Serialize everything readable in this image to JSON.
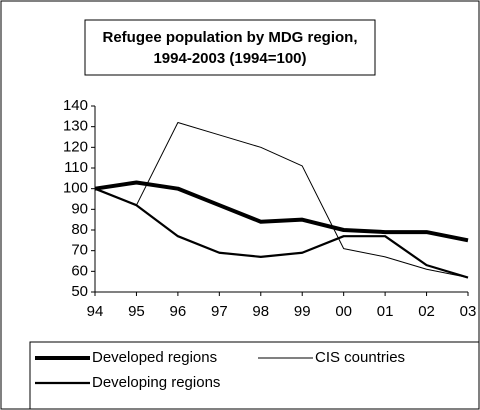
{
  "chart_data": {
    "type": "line",
    "title": [
      "Refugee population by MDG region,",
      "1994-2003 (1994=100)"
    ],
    "categories": [
      "94",
      "95",
      "96",
      "97",
      "98",
      "99",
      "00",
      "01",
      "02",
      "03"
    ],
    "series": [
      {
        "name": "Developed regions",
        "color": "#000000",
        "line_width": 4,
        "values": [
          100,
          103,
          100,
          92,
          84,
          85,
          80,
          79,
          79,
          75
        ]
      },
      {
        "name": "CIS countries",
        "color": "#000000",
        "line_width": 1,
        "values": [
          100,
          92,
          132,
          126,
          120,
          111,
          71,
          67,
          61,
          57
        ]
      },
      {
        "name": "Developing regions",
        "color": "#000000",
        "line_width": 2.2,
        "values": [
          100,
          92,
          77,
          69,
          67,
          69,
          77,
          77,
          63,
          57
        ]
      }
    ],
    "ylim": [
      50,
      140
    ],
    "yticks": [
      50,
      60,
      70,
      80,
      90,
      100,
      110,
      120,
      130,
      140
    ]
  }
}
